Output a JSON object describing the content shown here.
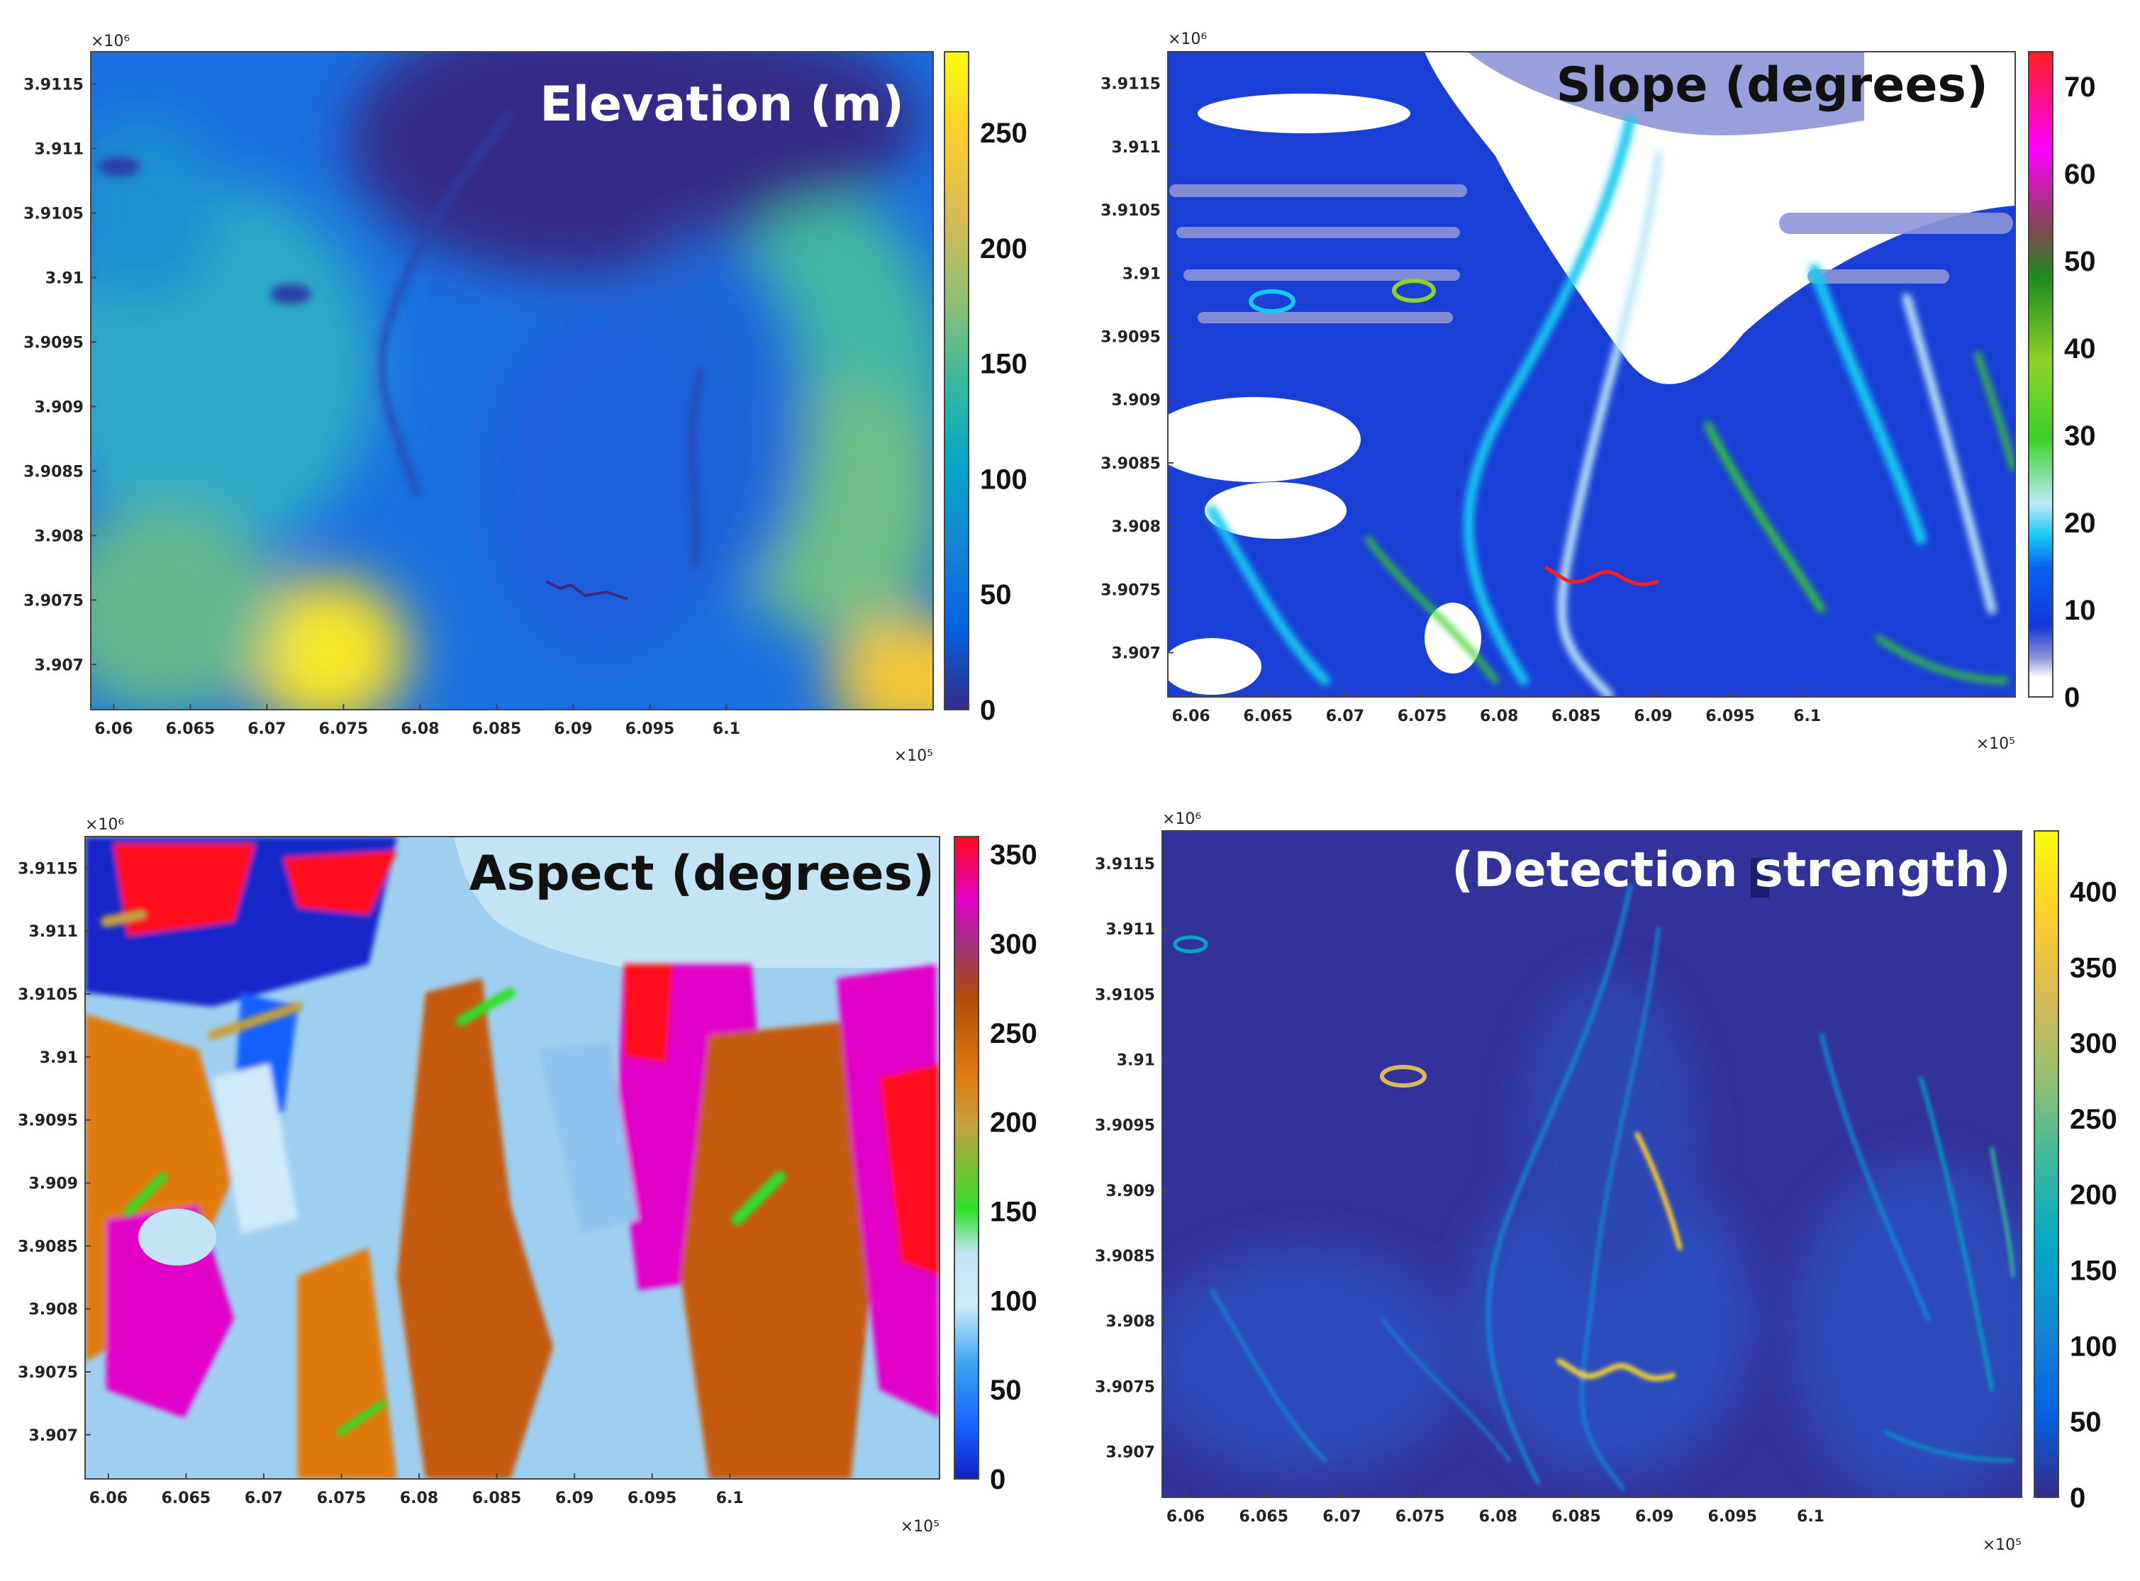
{
  "colors": {
    "parula": [
      "#352a87",
      "#0363e1",
      "#1485d4",
      "#06a7c6",
      "#38b99e",
      "#92bf73",
      "#d9ba56",
      "#fcce2e",
      "#f9fb0e"
    ],
    "slope_ramp": [
      "#ffffff",
      "#8e95d6",
      "#1437d6",
      "#0a62f0",
      "#16c9f0",
      "#bfeaf7",
      "#3ad12a",
      "#8fd12a",
      "#1f8a1f",
      "#7a4a4a",
      "#ff00ff",
      "#ff1e1e"
    ],
    "aspect_ramp": [
      "#1020c0",
      "#1860ff",
      "#3aa7f0",
      "#cfeaf9",
      "#c3e4f5",
      "#2fe02a",
      "#c4a040",
      "#e07a10",
      "#b04a0a",
      "#a0327a",
      "#e000c8",
      "#ff0a1e"
    ],
    "title_dark": "#111111",
    "title_light": "#ffffff"
  },
  "chart_data": [
    {
      "type": "heatmap",
      "title": "Elevation (m)",
      "x_ticks": [
        "6.06",
        "6.065",
        "6.07",
        "6.075",
        "6.08",
        "6.085",
        "6.09",
        "6.095",
        "6.1"
      ],
      "x_values": [
        6.06,
        6.065,
        6.07,
        6.075,
        6.08,
        6.085,
        6.09,
        6.095,
        6.1
      ],
      "x_exponent": "×10⁵",
      "xlim": [
        6.0585,
        6.1135
      ],
      "y_ticks": [
        "3.9115",
        "3.911",
        "3.9105",
        "3.91",
        "3.9095",
        "3.909",
        "3.9085",
        "3.908",
        "3.9075",
        "3.907"
      ],
      "y_values": [
        3.9115,
        3.911,
        3.9105,
        3.91,
        3.9095,
        3.909,
        3.9085,
        3.908,
        3.9075,
        3.907
      ],
      "y_exponent": "×10⁶",
      "ylim": [
        3.90665,
        3.91175
      ],
      "colorbar": {
        "ticks": [
          "250",
          "200",
          "150",
          "100",
          "50",
          "0"
        ],
        "values": [
          250,
          200,
          150,
          100,
          50,
          0
        ],
        "range": [
          0,
          285
        ],
        "colormap": "parula"
      },
      "title_color": "light"
    },
    {
      "type": "heatmap",
      "title": "Slope (degrees)",
      "x_ticks": [
        "6.06",
        "6.065",
        "6.07",
        "6.075",
        "6.08",
        "6.085",
        "6.09",
        "6.095",
        "6.1"
      ],
      "x_values": [
        6.06,
        6.065,
        6.07,
        6.075,
        6.08,
        6.085,
        6.09,
        6.095,
        6.1
      ],
      "x_exponent": "×10⁵",
      "xlim": [
        6.0585,
        6.1135
      ],
      "y_ticks": [
        "3.9115",
        "3.911",
        "3.9105",
        "3.91",
        "3.9095",
        "3.909",
        "3.9085",
        "3.908",
        "3.9075",
        "3.907"
      ],
      "y_values": [
        3.9115,
        3.911,
        3.9105,
        3.91,
        3.9095,
        3.909,
        3.9085,
        3.908,
        3.9075,
        3.907
      ],
      "y_exponent": "×10⁶",
      "ylim": [
        3.90665,
        3.91175
      ],
      "colorbar": {
        "ticks": [
          "70",
          "60",
          "50",
          "40",
          "30",
          "20",
          "10",
          "0"
        ],
        "values": [
          70,
          60,
          50,
          40,
          30,
          20,
          10,
          0
        ],
        "range": [
          0,
          74
        ],
        "colormap": "slope"
      },
      "title_color": "dark"
    },
    {
      "type": "heatmap",
      "title": "Aspect (degrees)",
      "x_ticks": [
        "6.06",
        "6.065",
        "6.07",
        "6.075",
        "6.08",
        "6.085",
        "6.09",
        "6.095",
        "6.1"
      ],
      "x_values": [
        6.06,
        6.065,
        6.07,
        6.075,
        6.08,
        6.085,
        6.09,
        6.095,
        6.1
      ],
      "x_exponent": "×10⁵",
      "xlim": [
        6.0585,
        6.1135
      ],
      "y_ticks": [
        "3.9115",
        "3.911",
        "3.9105",
        "3.91",
        "3.9095",
        "3.909",
        "3.9085",
        "3.908",
        "3.9075",
        "3.907"
      ],
      "y_values": [
        3.9115,
        3.911,
        3.9105,
        3.91,
        3.9095,
        3.909,
        3.9085,
        3.908,
        3.9075,
        3.907
      ],
      "y_exponent": "×10⁶",
      "ylim": [
        3.90665,
        3.91175
      ],
      "colorbar": {
        "ticks": [
          "350",
          "300",
          "250",
          "200",
          "150",
          "100",
          "50",
          "0"
        ],
        "values": [
          350,
          300,
          250,
          200,
          150,
          100,
          50,
          0
        ],
        "range": [
          0,
          360
        ],
        "colormap": "aspect"
      },
      "title_color": "dark"
    },
    {
      "type": "heatmap",
      "title": "(Detection  strength)",
      "x_ticks": [
        "6.06",
        "6.065",
        "6.07",
        "6.075",
        "6.08",
        "6.085",
        "6.09",
        "6.095",
        "6.1"
      ],
      "x_values": [
        6.06,
        6.065,
        6.07,
        6.075,
        6.08,
        6.085,
        6.09,
        6.095,
        6.1
      ],
      "x_exponent": "×10⁵",
      "xlim": [
        6.0585,
        6.1135
      ],
      "y_ticks": [
        "3.9115",
        "3.911",
        "3.9105",
        "3.91",
        "3.9095",
        "3.909",
        "3.9085",
        "3.908",
        "3.9075",
        "3.907"
      ],
      "y_values": [
        3.9115,
        3.911,
        3.9105,
        3.91,
        3.9095,
        3.909,
        3.9085,
        3.908,
        3.9075,
        3.907
      ],
      "y_exponent": "×10⁶",
      "ylim": [
        3.90665,
        3.91175
      ],
      "colorbar": {
        "ticks": [
          "400",
          "350",
          "300",
          "250",
          "200",
          "150",
          "100",
          "50",
          "0"
        ],
        "values": [
          400,
          350,
          300,
          250,
          200,
          150,
          100,
          50,
          0
        ],
        "range": [
          0,
          440
        ],
        "colormap": "parula"
      },
      "title_color": "light"
    }
  ]
}
